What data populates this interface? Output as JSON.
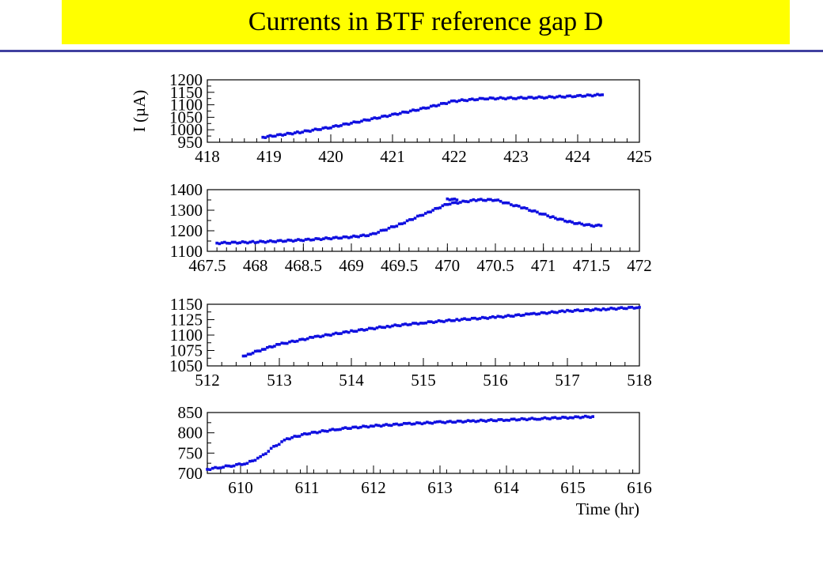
{
  "slide": {
    "title": "Currents in BTF reference gap D",
    "title_bg": "#ffff00",
    "rule_color": "#4040a0"
  },
  "chart_data": [
    {
      "type": "scatter",
      "color": "#1010e0",
      "ylabel": "I (µA)",
      "xlabel": "",
      "xlim": [
        418,
        425
      ],
      "ylim": [
        950,
        1200
      ],
      "xticks": [
        418,
        419,
        420,
        421,
        422,
        423,
        424,
        425
      ],
      "yticks": [
        950,
        1000,
        1050,
        1100,
        1150,
        1200
      ],
      "segments": [
        {
          "x": [
            418.9,
            419.5,
            420.0,
            420.5,
            421.0,
            421.5,
            422.0,
            422.5,
            423.0,
            423.5,
            424.0,
            424.4
          ],
          "y": [
            970,
            990,
            1010,
            1035,
            1060,
            1085,
            1115,
            1125,
            1127,
            1130,
            1135,
            1140
          ]
        }
      ]
    },
    {
      "type": "scatter",
      "color": "#1010e0",
      "ylabel": "",
      "xlabel": "",
      "xlim": [
        467.5,
        472
      ],
      "ylim": [
        1100,
        1400
      ],
      "xticks": [
        467.5,
        468,
        468.5,
        469,
        469.5,
        470,
        470.5,
        471,
        471.5,
        472
      ],
      "yticks": [
        1100,
        1200,
        1300,
        1400
      ],
      "segments": [
        {
          "x": [
            467.6,
            468.0,
            468.5,
            469.0,
            469.2,
            469.5,
            469.8,
            470.0,
            470.3,
            470.5,
            470.8,
            471.1,
            471.3,
            471.5
          ],
          "y": [
            1140,
            1145,
            1155,
            1170,
            1180,
            1230,
            1290,
            1330,
            1350,
            1350,
            1310,
            1265,
            1240,
            1225
          ]
        },
        {
          "x": [
            470.0,
            470.1
          ],
          "y": [
            1355,
            1350
          ]
        },
        {
          "x": [
            471.5,
            471.6
          ],
          "y": [
            1225,
            1225
          ]
        }
      ]
    },
    {
      "type": "scatter",
      "color": "#1010e0",
      "ylabel": "",
      "xlabel": "",
      "xlim": [
        512,
        518
      ],
      "ylim": [
        1050,
        1150
      ],
      "xticks": [
        512,
        513,
        514,
        515,
        516,
        517,
        518
      ],
      "yticks": [
        1050,
        1075,
        1100,
        1125,
        1150
      ],
      "segments": [
        {
          "x": [
            512.5,
            512.6,
            512.8,
            513.0,
            513.5,
            514.0,
            514.5,
            515.0,
            515.5,
            516.0,
            516.5,
            517.0,
            517.5,
            518.0
          ],
          "y": [
            1066,
            1070,
            1078,
            1085,
            1097,
            1106,
            1114,
            1120,
            1125,
            1129,
            1134,
            1139,
            1142,
            1145
          ]
        }
      ]
    },
    {
      "type": "scatter",
      "color": "#1010e0",
      "ylabel": "",
      "xlabel": "Time (hr)",
      "xlim": [
        609.5,
        616
      ],
      "ylim": [
        700,
        850
      ],
      "xticks": [
        610,
        611,
        612,
        613,
        614,
        615,
        616
      ],
      "yticks": [
        700,
        750,
        800,
        850
      ],
      "segments": [
        {
          "x": [
            609.5,
            609.7,
            609.9,
            610.1,
            610.3,
            610.5,
            610.7,
            611.0,
            611.5,
            612.0,
            612.5,
            613.0,
            613.5,
            614.0,
            614.5,
            615.0,
            615.3
          ],
          "y": [
            710,
            715,
            720,
            725,
            740,
            765,
            785,
            798,
            810,
            817,
            822,
            826,
            829,
            832,
            835,
            838,
            840
          ]
        }
      ]
    }
  ]
}
